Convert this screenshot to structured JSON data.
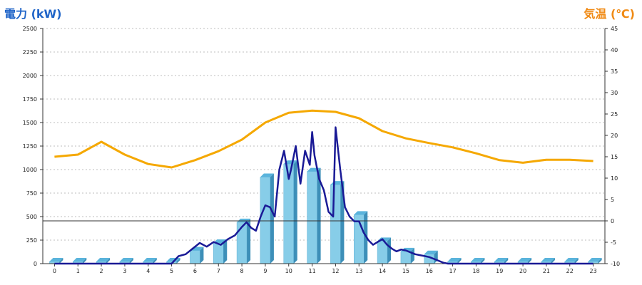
{
  "header": {
    "left_title": "電力 (kW)",
    "right_title": "気温 (℃)"
  },
  "chart_data": {
    "type": "bar",
    "y_left_label": "電力 (kW)",
    "y_right_label": "気温 (℃)",
    "ylim_left": [
      0,
      2500
    ],
    "ylim_right": [
      -10,
      45
    ],
    "y_left_ticks": [
      "0",
      "250",
      "500",
      "750",
      "1000",
      "1250",
      "1500",
      "1750",
      "2000",
      "2250",
      "2500"
    ],
    "y_right_ticks": [
      "-10",
      "-5",
      "0",
      "5",
      "10",
      "15",
      "20",
      "25",
      "30",
      "35",
      "40",
      "45"
    ],
    "x_ticks": [
      "0",
      "1",
      "2",
      "3",
      "4",
      "5",
      "6",
      "7",
      "8",
      "9",
      "10",
      "11",
      "12",
      "13",
      "14",
      "15",
      "16",
      "17",
      "18",
      "19",
      "20",
      "21",
      "22",
      "23"
    ],
    "grid": true,
    "series": [
      {
        "kind": "bar",
        "axis": "left",
        "color": "#87cde8",
        "values": [
          0,
          0,
          0,
          0,
          0,
          0,
          140,
          220,
          440,
          920,
          1060,
          980,
          840,
          520,
          240,
          130,
          100,
          0,
          0,
          0,
          0,
          0,
          0,
          0
        ]
      },
      {
        "kind": "line",
        "axis": "left",
        "color": "#1a1a96",
        "x": [
          0,
          1,
          2,
          3,
          4,
          5,
          5.3,
          5.6,
          5.9,
          6.2,
          6.5,
          6.8,
          7.1,
          7.4,
          7.7,
          8.0,
          8.2,
          8.4,
          8.6,
          8.8,
          9.0,
          9.2,
          9.4,
          9.6,
          9.8,
          10.0,
          10.1,
          10.3,
          10.5,
          10.7,
          10.9,
          11.0,
          11.1,
          11.3,
          11.5,
          11.7,
          11.9,
          12.0,
          12.2,
          12.4,
          12.6,
          12.8,
          13.0,
          13.2,
          13.4,
          13.6,
          13.8,
          14.0,
          14.2,
          14.4,
          14.6,
          14.8,
          15.0,
          15.2,
          15.4,
          15.6,
          15.8,
          16.0,
          16.2,
          16.4,
          16.6,
          16.8,
          17,
          18,
          19,
          20,
          21,
          22,
          23
        ],
        "y": [
          0,
          0,
          0,
          0,
          0,
          0,
          80,
          100,
          160,
          220,
          180,
          230,
          200,
          260,
          300,
          390,
          440,
          380,
          350,
          500,
          620,
          600,
          500,
          1000,
          1200,
          900,
          1000,
          1250,
          850,
          1200,
          1050,
          1400,
          1150,
          900,
          780,
          550,
          500,
          1450,
          1000,
          600,
          500,
          450,
          450,
          330,
          250,
          200,
          230,
          260,
          200,
          160,
          130,
          150,
          140,
          120,
          100,
          90,
          80,
          70,
          50,
          30,
          10,
          0,
          0,
          0,
          0,
          0,
          0,
          0,
          0
        ]
      },
      {
        "kind": "line",
        "axis": "right",
        "color": "#f5a800",
        "x": [
          0,
          1,
          2,
          3,
          4,
          5,
          6,
          7,
          8,
          9,
          10,
          11,
          12,
          13,
          14,
          15,
          16,
          17,
          18,
          19,
          20,
          21,
          22,
          23
        ],
        "y": [
          15,
          15.5,
          18.5,
          15.5,
          13.3,
          12.5,
          14.2,
          16.3,
          19,
          23,
          25.3,
          25.8,
          25.5,
          24,
          21,
          19.3,
          18.2,
          17.2,
          15.8,
          14.2,
          13.6,
          14.3,
          14.3,
          14
        ]
      }
    ]
  }
}
